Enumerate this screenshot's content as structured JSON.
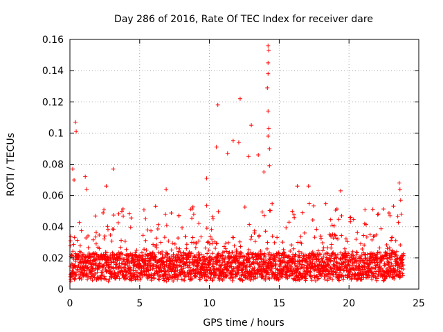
{
  "chart_data": {
    "type": "scatter",
    "title": "Day 286 of 2016, Rate Of TEC Index for receiver dare",
    "xlabel": "GPS time / hours",
    "ylabel": "ROTI / TECUs",
    "xlim": [
      0,
      25
    ],
    "ylim": [
      0,
      0.16
    ],
    "grid": true,
    "marker": "+",
    "color": "#ff0000",
    "x_ticks": [
      0,
      5,
      10,
      15,
      20,
      25
    ],
    "x_tick_labels": [
      "0",
      "5",
      "10",
      "15",
      "20",
      "25"
    ],
    "y_ticks": [
      0,
      0.02,
      0.04,
      0.06,
      0.08,
      0.1,
      0.12,
      0.14,
      0.16
    ],
    "y_tick_labels": [
      "0",
      "0.02",
      "0.04",
      "0.06",
      "0.08",
      "0.1",
      "0.12",
      "0.14",
      "0.16"
    ],
    "data_range_x": [
      0,
      23.9
    ],
    "baseline_band": [
      0.005,
      0.035
    ],
    "notable_points": [
      {
        "x": 0.2,
        "y": 0.077
      },
      {
        "x": 0.4,
        "y": 0.107
      },
      {
        "x": 0.45,
        "y": 0.101
      },
      {
        "x": 0.3,
        "y": 0.07
      },
      {
        "x": 1.1,
        "y": 0.072
      },
      {
        "x": 1.2,
        "y": 0.064
      },
      {
        "x": 2.6,
        "y": 0.066
      },
      {
        "x": 3.1,
        "y": 0.077
      },
      {
        "x": 6.9,
        "y": 0.064
      },
      {
        "x": 9.8,
        "y": 0.071
      },
      {
        "x": 10.6,
        "y": 0.118
      },
      {
        "x": 10.5,
        "y": 0.091
      },
      {
        "x": 11.3,
        "y": 0.087
      },
      {
        "x": 11.7,
        "y": 0.095
      },
      {
        "x": 12.2,
        "y": 0.122
      },
      {
        "x": 12.1,
        "y": 0.094
      },
      {
        "x": 12.8,
        "y": 0.085
      },
      {
        "x": 13.0,
        "y": 0.105
      },
      {
        "x": 13.5,
        "y": 0.086
      },
      {
        "x": 13.9,
        "y": 0.075
      },
      {
        "x": 14.2,
        "y": 0.156
      },
      {
        "x": 14.25,
        "y": 0.153
      },
      {
        "x": 14.2,
        "y": 0.145
      },
      {
        "x": 14.2,
        "y": 0.138
      },
      {
        "x": 14.15,
        "y": 0.129
      },
      {
        "x": 14.2,
        "y": 0.114
      },
      {
        "x": 14.25,
        "y": 0.103
      },
      {
        "x": 14.2,
        "y": 0.098
      },
      {
        "x": 14.3,
        "y": 0.09
      },
      {
        "x": 14.3,
        "y": 0.079
      },
      {
        "x": 16.3,
        "y": 0.066
      },
      {
        "x": 17.1,
        "y": 0.066
      },
      {
        "x": 19.4,
        "y": 0.063
      },
      {
        "x": 23.6,
        "y": 0.068
      },
      {
        "x": 23.65,
        "y": 0.064
      },
      {
        "x": 23.7,
        "y": 0.057
      },
      {
        "x": 23.75,
        "y": 0.048
      }
    ]
  }
}
